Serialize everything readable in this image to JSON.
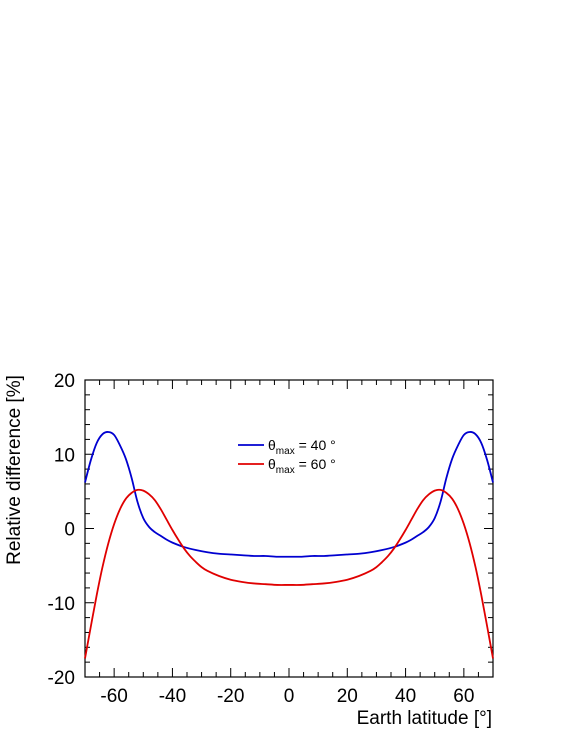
{
  "chart_data": {
    "type": "line",
    "xlabel": "Earth latitude [°]",
    "ylabel": "Relative difference [%]",
    "xlim": [
      -70,
      70
    ],
    "ylim": [
      -20,
      20
    ],
    "xticks": [
      -60,
      -40,
      -20,
      0,
      20,
      40,
      60
    ],
    "yticks": [
      -20,
      -10,
      0,
      10,
      20
    ],
    "grid": false,
    "legend_position": "top-center",
    "series": [
      {
        "name": "θmax = 40 °",
        "legend_symbol": "θ",
        "legend_sub": "max",
        "legend_rest": " = 40 °",
        "color": "#0000d0",
        "x": [
          -70,
          -68,
          -66,
          -64,
          -62,
          -60,
          -58,
          -56,
          -54,
          -52,
          -50,
          -48,
          -46,
          -44,
          -42,
          -40,
          -36,
          -32,
          -28,
          -24,
          -20,
          -16,
          -12,
          -8,
          -4,
          0,
          4,
          8,
          12,
          16,
          20,
          24,
          28,
          32,
          36,
          40,
          42,
          44,
          46,
          48,
          50,
          52,
          54,
          56,
          58,
          60,
          62,
          64,
          66,
          68,
          70
        ],
        "y": [
          6.2,
          9.2,
          11.5,
          12.7,
          13.0,
          12.6,
          11.2,
          9.4,
          6.8,
          3.6,
          1.4,
          0.2,
          -0.5,
          -1.0,
          -1.5,
          -1.9,
          -2.5,
          -2.9,
          -3.2,
          -3.4,
          -3.5,
          -3.6,
          -3.7,
          -3.7,
          -3.8,
          -3.8,
          -3.8,
          -3.7,
          -3.7,
          -3.6,
          -3.5,
          -3.4,
          -3.2,
          -2.9,
          -2.5,
          -1.9,
          -1.5,
          -1.0,
          -0.5,
          0.2,
          1.4,
          3.6,
          6.8,
          9.4,
          11.2,
          12.6,
          13.0,
          12.7,
          11.5,
          9.2,
          6.2
        ]
      },
      {
        "name": "θmax = 60 °",
        "legend_symbol": "θ",
        "legend_sub": "max",
        "legend_rest": " = 60 °",
        "color": "#e00000",
        "x": [
          -70,
          -68,
          -66,
          -64,
          -62,
          -60,
          -58,
          -56,
          -54,
          -52,
          -50,
          -48,
          -46,
          -44,
          -42,
          -40,
          -38,
          -36,
          -34,
          -32,
          -30,
          -28,
          -24,
          -20,
          -16,
          -12,
          -8,
          -4,
          0,
          4,
          8,
          12,
          16,
          20,
          24,
          28,
          30,
          32,
          34,
          36,
          38,
          40,
          42,
          44,
          46,
          48,
          50,
          52,
          54,
          56,
          58,
          60,
          62,
          64,
          66,
          68,
          70
        ],
        "y": [
          -17.5,
          -13.2,
          -9.0,
          -5.2,
          -2.0,
          0.6,
          2.6,
          4.0,
          4.8,
          5.2,
          5.1,
          4.6,
          3.8,
          2.6,
          1.2,
          -0.2,
          -1.5,
          -2.7,
          -3.7,
          -4.5,
          -5.2,
          -5.7,
          -6.4,
          -6.9,
          -7.2,
          -7.4,
          -7.5,
          -7.6,
          -7.6,
          -7.6,
          -7.5,
          -7.4,
          -7.2,
          -6.9,
          -6.4,
          -5.7,
          -5.2,
          -4.5,
          -3.7,
          -2.7,
          -1.5,
          -0.2,
          1.2,
          2.6,
          3.8,
          4.6,
          5.1,
          5.2,
          4.8,
          4.0,
          2.6,
          0.6,
          -2.0,
          -5.2,
          -9.0,
          -13.2,
          -17.5
        ]
      }
    ]
  }
}
